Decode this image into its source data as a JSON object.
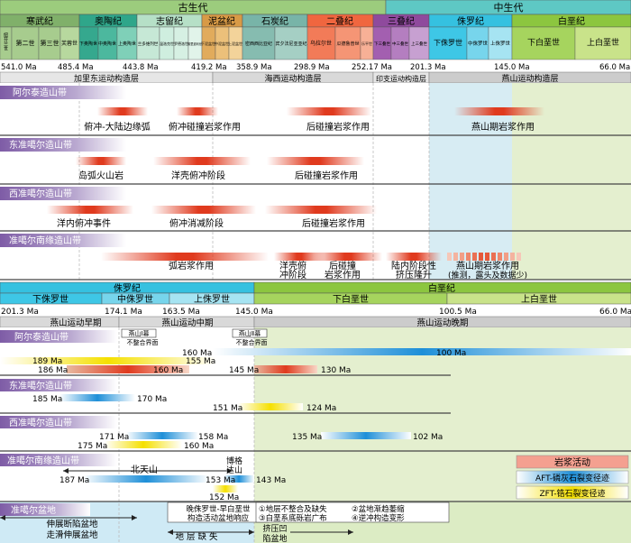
{
  "eras": {
    "paleozoic": "古生代",
    "mesozoic": "中生代"
  },
  "periods": {
    "cambrian": "寒武纪",
    "ordovician": "奥陶纪",
    "silurian": "志留纪",
    "devonian": "泥盆纪",
    "carboniferous": "石炭纪",
    "permian": "二叠纪",
    "triassic": "三叠纪",
    "jurassic": "侏罗纪",
    "cretaceous": "白垩纪"
  },
  "epochs": {
    "camb1": "纽芬兰世",
    "camb2": "第二世",
    "camb3": "第三世",
    "camb4": "芙蓉世",
    "ord1": "下奥陶世",
    "ord2": "中奥陶世",
    "ord3": "上奥陶世",
    "sil1": "兰多维列世",
    "sil2": "温洛克世",
    "sil3": "罗德洛世",
    "sil4": "普里道利世",
    "dev1": "下泥盆世",
    "dev2": "中泥盆世",
    "dev3": "上泥盆世",
    "car1": "密西西比亚纪",
    "car2": "宾夕法尼亚亚纪",
    "per1": "乌拉尔世",
    "per2": "瓜德鲁普世",
    "per3": "乐平世",
    "tri1": "下三叠世",
    "tri2": "中三叠世",
    "tri3": "上三叠世",
    "jur1": "下侏罗世",
    "jur2": "中侏罗世",
    "jur3": "上侏罗世",
    "cre1": "下白垩世",
    "cre2": "上白垩世"
  },
  "top_ages": [
    "541.0 Ma",
    "485.4 Ma",
    "443.8 Ma",
    "419.2 Ma",
    "358.9 Ma",
    "298.9 Ma",
    "252.17 Ma",
    "201.3 Ma",
    "145.0 Ma",
    "66.0 Ma"
  ],
  "top_layers": [
    "加里东运动构造层",
    "海西运动构造层",
    "印支运动构造层",
    "燕山运动构造层"
  ],
  "top_belts": [
    "阿尔泰造山带",
    "东准噶尔造山带",
    "西准噶尔造山带",
    "准噶尔南缘造山带"
  ],
  "top_events": {
    "altai": [
      "俯冲-大陆边缘弧",
      "俯冲碰撞岩浆作用",
      "后碰撞岩浆作用",
      "燕山期岩浆作用"
    ],
    "east": [
      "岛弧火山岩",
      "洋壳俯冲阶段",
      "后碰撞岩浆作用"
    ],
    "west": [
      "洋内俯冲事件",
      "俯冲消减阶段",
      "后碰撞岩浆作用"
    ],
    "south_a": "弧岩浆作用",
    "south_b": [
      "洋壳俯",
      "冲阶段"
    ],
    "south_c": [
      "后碰撞",
      "岩浆作用"
    ],
    "south_d": [
      "陆内阶段性",
      "挤压隆升"
    ],
    "south_e": [
      "燕山期岩浆作用",
      "(推测，露头及数据少)"
    ]
  },
  "bottom_periods": {
    "jurassic": "侏罗纪",
    "cretaceous": "白垩纪"
  },
  "bottom_epochs": {
    "jur1": "下侏罗世",
    "jur2": "中侏罗世",
    "jur3": "上侏罗世",
    "cre1": "下白垩世",
    "cre2": "上白垩世"
  },
  "bottom_ages": [
    "201.3 Ma",
    "174.1 Ma",
    "163.5 Ma",
    "145.0 Ma",
    "100.5 Ma",
    "66.0 Ma"
  ],
  "bottom_phases": [
    "燕山运动早期",
    "燕山运动中期",
    "燕山运动晚期"
  ],
  "unconformity": {
    "early": [
      "燕山Ⅰ幕",
      "不整合界面"
    ],
    "mid": [
      "燕山Ⅱ幕",
      "不整合界面"
    ]
  },
  "bottom_belts": [
    "阿尔泰造山带",
    "东准噶尔造山带",
    "西准噶尔造山带",
    "准噶尔南缘造山带",
    "准噶尔盆地"
  ],
  "ages_labels": {
    "a160": "160 Ma",
    "a100": "100 Ma",
    "a189": "189 Ma",
    "a155": "155 Ma",
    "a186": "186 Ma",
    "a160b": "160 Ma",
    "a145": "145 Ma",
    "a130": "130 Ma",
    "b185": "185 Ma",
    "b170": "170 Ma",
    "b151": "151 Ma",
    "b124": "124 Ma",
    "c171": "171 Ma",
    "c158": "158 Ma",
    "c135": "135 Ma",
    "c102": "102 Ma",
    "c175": "175 Ma",
    "c160": "160 Ma",
    "d187": "187 Ma",
    "d153": "153 Ma",
    "d143": "143 Ma",
    "d152": "152 Ma"
  },
  "mountains": {
    "beitian": "北天山",
    "bogeda": [
      "博格",
      "达山"
    ]
  },
  "basin_labels": {
    "ext": [
      "伸展断陷盆地",
      "走滑伸展盆地"
    ],
    "comp": [
      "挤压凹",
      "陷盆地"
    ],
    "gap": "地 层 缺 失",
    "box_title": [
      "晚侏罗世-早白垩世",
      "构造活动盆地响应"
    ],
    "resp": [
      "①地层不整合及缺失",
      "②盆地渐趋萎缩",
      "③白垩系底砾岩广布",
      "④逆冲构造变形"
    ]
  },
  "legend": {
    "title": "岩浆活动",
    "aft": "AFT-磷灰石裂变径迹",
    "zft": "ZFT-锆石裂变径迹"
  },
  "colors": {
    "paleozoic": "#9ccc7d",
    "mesozoic": "#5ec8c4",
    "cambrian": "#80b06a",
    "ordovician": "#2fa68a",
    "silurian": "#b6e0c7",
    "devonian": "#d89a46",
    "carboniferous": "#78b4a8",
    "permian": "#f0663f",
    "triassic": "#8f4a9d",
    "jurassic": "#35c1e0",
    "cretaceous": "#8cc63f",
    "magma": "#e03a1e",
    "aft": "#1e8fd8",
    "zft": "#f5e000",
    "belt_band": "#7e5ca6"
  }
}
